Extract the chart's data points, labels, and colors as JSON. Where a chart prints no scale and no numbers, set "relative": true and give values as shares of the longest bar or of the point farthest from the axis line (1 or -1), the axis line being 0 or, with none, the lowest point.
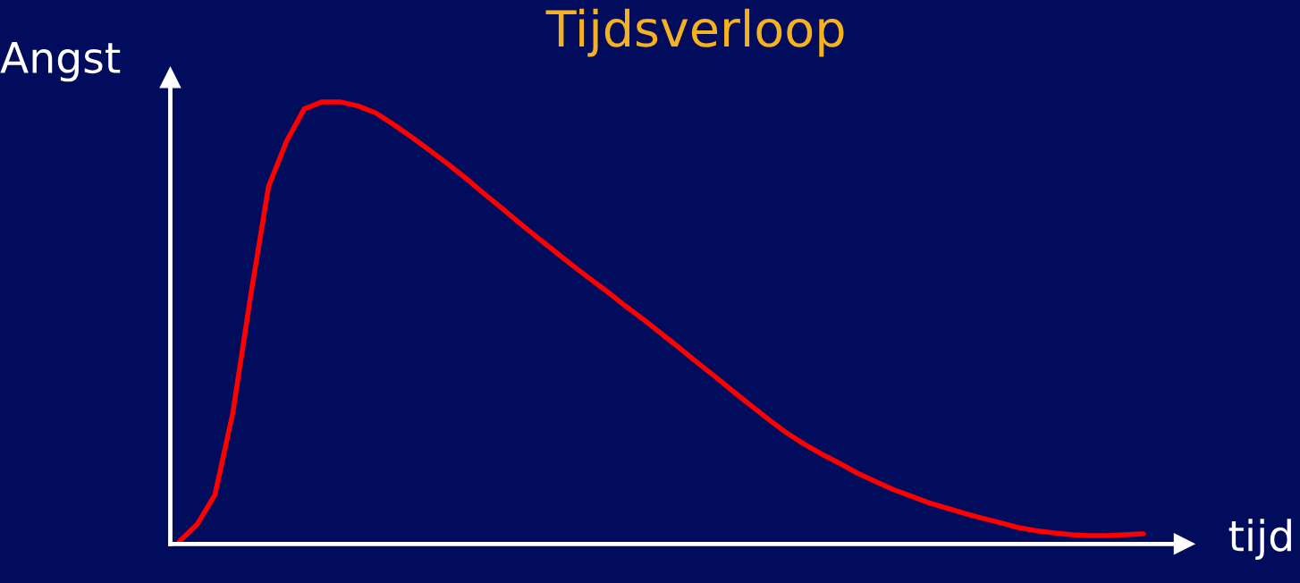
{
  "chart_data": {
    "type": "line",
    "title": "Tijdsverloop",
    "xlabel": "tijd",
    "ylabel": "Angst",
    "relative": true,
    "categories": [
      null,
      null,
      null,
      null,
      null,
      null,
      null,
      null,
      null,
      null,
      null,
      null,
      null,
      null,
      null,
      null,
      null,
      null,
      null,
      null,
      null,
      null,
      null,
      null,
      null,
      null,
      null,
      null,
      null,
      null,
      null,
      null,
      null,
      null,
      null,
      null,
      null,
      null,
      null,
      null,
      null,
      null,
      null,
      null,
      null,
      null,
      null,
      null,
      null,
      null,
      null,
      null,
      null,
      null,
      null
    ],
    "series": [
      {
        "color": "#ff0000",
        "values": [
          0.005,
          0.044,
          0.111,
          0.296,
          0.561,
          0.808,
          0.91,
          0.984,
          1.0,
          1.0,
          0.991,
          0.975,
          0.949,
          0.921,
          0.891,
          0.861,
          0.829,
          0.795,
          0.762,
          0.728,
          0.695,
          0.663,
          0.631,
          0.6,
          0.57,
          0.538,
          0.508,
          0.476,
          0.444,
          0.411,
          0.379,
          0.346,
          0.314,
          0.282,
          0.252,
          0.226,
          0.203,
          0.182,
          0.16,
          0.141,
          0.123,
          0.108,
          0.093,
          0.081,
          0.069,
          0.058,
          0.048,
          0.037,
          0.03,
          0.025,
          0.021,
          0.019,
          0.019,
          0.021,
          0.023
        ]
      }
    ],
    "grid": false,
    "legend": false,
    "marker": "none",
    "line_style": "solid"
  }
}
